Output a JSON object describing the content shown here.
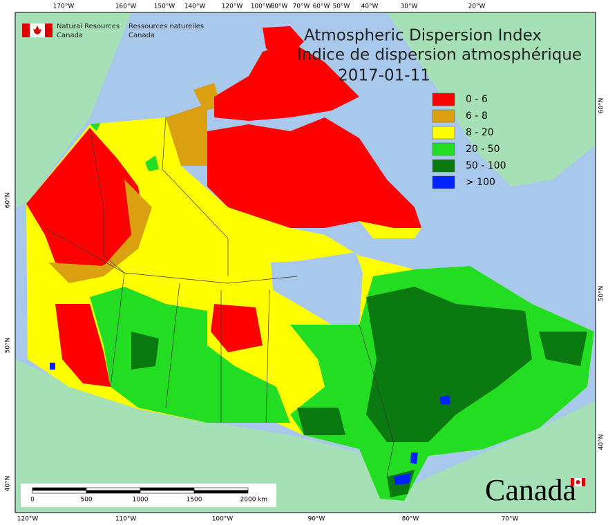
{
  "header": {
    "agency_en": [
      "Natural Resources",
      "Canada"
    ],
    "agency_fr": [
      "Ressources naturelles",
      "Canada"
    ]
  },
  "title": {
    "line1": "Atmospheric Dispersion Index",
    "line2": "Indice de dispersion atmosphérique",
    "date": "2017-01-11"
  },
  "legend": [
    {
      "label": "0 - 6",
      "color": "#ff0000"
    },
    {
      "label": "6 - 8",
      "color": "#dba010"
    },
    {
      "label": "8 - 20",
      "color": "#ffff00"
    },
    {
      "label": "20 - 50",
      "color": "#22dd22"
    },
    {
      "label": "50 - 100",
      "color": "#0a7a10"
    },
    {
      "label": "> 100",
      "color": "#0022ff"
    }
  ],
  "top_labels": [
    "170°W",
    "160°W",
    "150°W",
    "140°W",
    "120°W",
    "100°W",
    "80°W",
    "70°W",
    "60°W",
    "50°W",
    "40°W",
    "30°W",
    "20°W"
  ],
  "bottom_labels": [
    "120°W",
    "110°W",
    "100°W",
    "90°W",
    "80°W",
    "70°W"
  ],
  "left_labels": [
    "60°N",
    "50°N",
    "40°N"
  ],
  "right_labels": [
    "60°N",
    "50°N",
    "40°N"
  ],
  "scale_bar": {
    "ticks": [
      "0",
      "500",
      "1000",
      "1500",
      "2000"
    ],
    "unit": "km"
  },
  "wordmark": "Canada"
}
